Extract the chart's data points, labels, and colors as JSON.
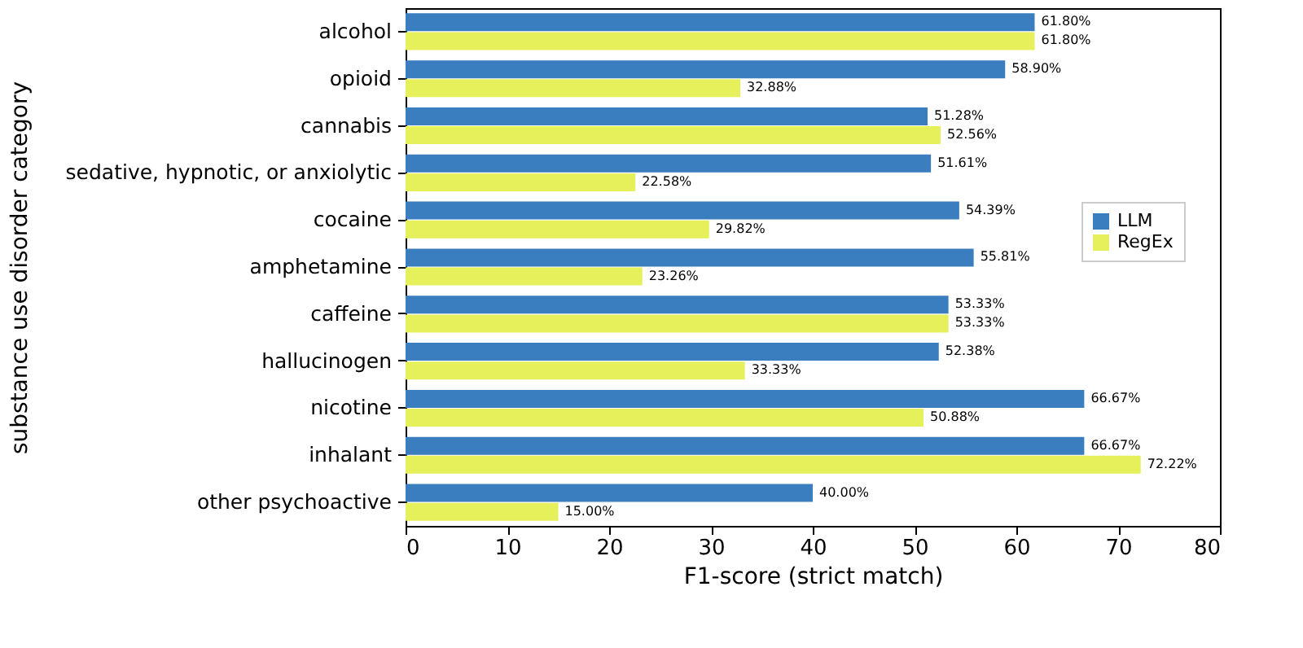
{
  "chart_data": {
    "type": "bar",
    "orientation": "horizontal",
    "xlabel": "F1-score (strict match)",
    "ylabel": "substance use disorder category",
    "categories": [
      "alcohol",
      "opioid",
      "cannabis",
      "sedative, hypnotic, or anxiolytic",
      "cocaine",
      "amphetamine",
      "caffeine",
      "hallucinogen",
      "nicotine",
      "inhalant",
      "other psychoactive"
    ],
    "series": [
      {
        "name": "LLM",
        "color": "#3a7ebf",
        "values": [
          61.8,
          58.9,
          51.28,
          51.61,
          54.39,
          55.81,
          53.33,
          52.38,
          66.67,
          66.67,
          40.0
        ],
        "value_labels": [
          "61.80%",
          "58.90%",
          "51.28%",
          "51.61%",
          "54.39%",
          "55.81%",
          "53.33%",
          "52.38%",
          "66.67%",
          "66.67%",
          "40.00%"
        ]
      },
      {
        "name": "RegEx",
        "color": "#e6f05a",
        "values": [
          61.8,
          32.88,
          52.56,
          22.58,
          29.82,
          23.26,
          53.33,
          33.33,
          50.88,
          72.22,
          15.0
        ],
        "value_labels": [
          "61.80%",
          "32.88%",
          "52.56%",
          "22.58%",
          "29.82%",
          "23.26%",
          "53.33%",
          "33.33%",
          "50.88%",
          "72.22%",
          "15.00%"
        ]
      }
    ],
    "xlim": [
      0,
      80
    ],
    "xticks": [
      0,
      10,
      20,
      30,
      40,
      50,
      60,
      70,
      80
    ],
    "grid": false,
    "legend": "right"
  }
}
